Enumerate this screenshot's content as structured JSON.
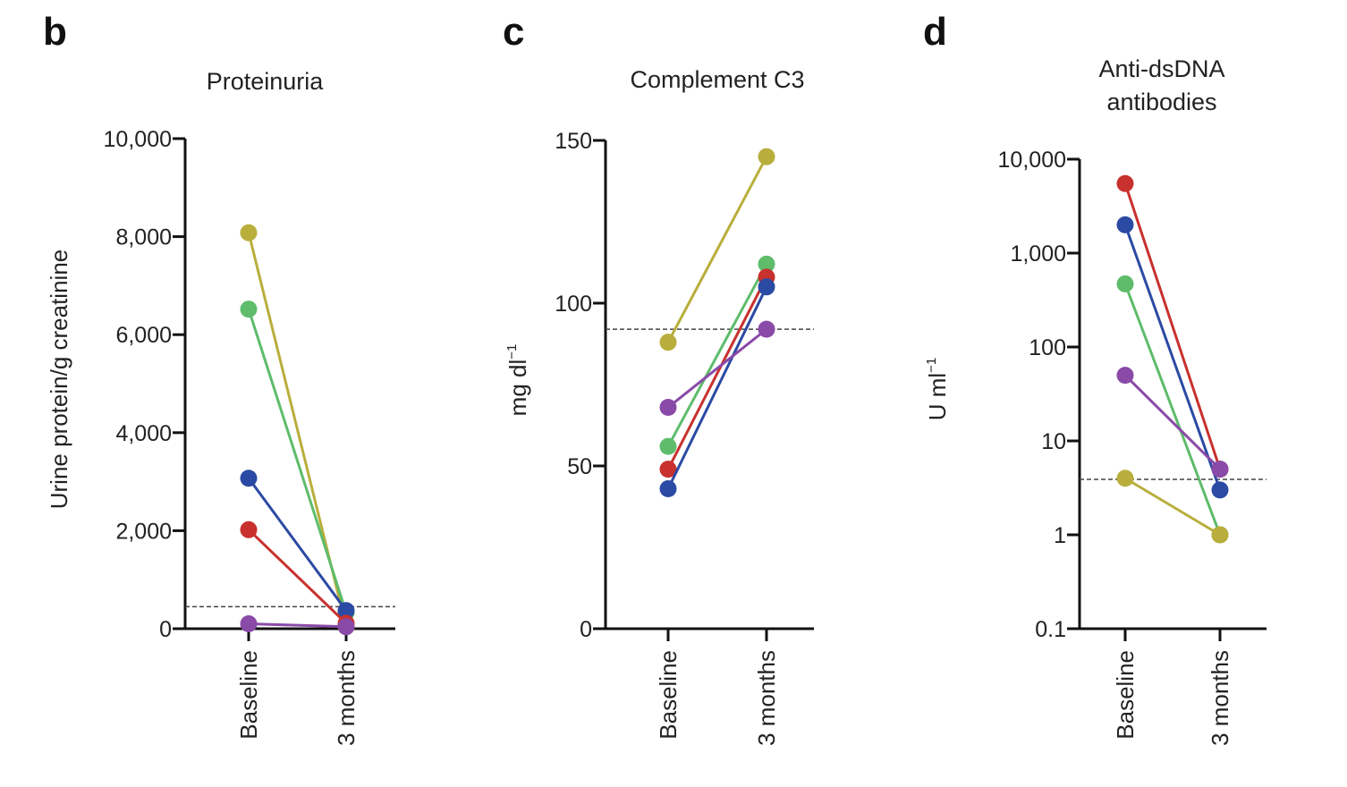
{
  "chart_data": [
    {
      "panel": "b",
      "type": "line",
      "title": "Proteinuria",
      "ylabel": "Urine protein/g creatinine",
      "ylabel_sup": "",
      "categories": [
        "Baseline",
        "3 months"
      ],
      "yscale": "linear",
      "ylim": [
        0,
        10000
      ],
      "yticks": [
        0,
        2000,
        4000,
        6000,
        8000,
        10000
      ],
      "ytick_labels": [
        "0",
        "2,000",
        "4,000",
        "6,000",
        "8,000",
        "10,000"
      ],
      "reference_line": 450,
      "series": [
        {
          "color": "#b9ae3c",
          "values": [
            8080,
            50
          ]
        },
        {
          "color": "#5ebc6b",
          "values": [
            6520,
            330
          ]
        },
        {
          "color": "#2b4aa3",
          "values": [
            3070,
            370
          ]
        },
        {
          "color": "#c8312e",
          "values": [
            2020,
            110
          ]
        },
        {
          "color": "#8a4aa8",
          "values": [
            100,
            40
          ]
        }
      ]
    },
    {
      "panel": "c",
      "type": "line",
      "title": "Complement C3",
      "ylabel": "mg dl",
      "ylabel_sup": "−1",
      "categories": [
        "Baseline",
        "3 months"
      ],
      "yscale": "linear",
      "ylim": [
        0,
        150
      ],
      "yticks": [
        0,
        50,
        100,
        150
      ],
      "ytick_labels": [
        "0",
        "50",
        "100",
        "150"
      ],
      "reference_line": 92,
      "series": [
        {
          "color": "#b9ae3c",
          "values": [
            88,
            145
          ]
        },
        {
          "color": "#5ebc6b",
          "values": [
            56,
            112
          ]
        },
        {
          "color": "#c8312e",
          "values": [
            49,
            108
          ]
        },
        {
          "color": "#2b4aa3",
          "values": [
            43,
            105
          ]
        },
        {
          "color": "#8a4aa8",
          "values": [
            68,
            92
          ]
        }
      ]
    },
    {
      "panel": "d",
      "type": "line",
      "title": "Anti-dsDNA",
      "title_line2": "antibodies",
      "ylabel": "U ml",
      "ylabel_sup": "−1",
      "categories": [
        "Baseline",
        "3 months"
      ],
      "yscale": "log",
      "ylim": [
        0.1,
        10000
      ],
      "yticks": [
        0.1,
        1,
        10,
        100,
        1000,
        10000
      ],
      "ytick_labels": [
        "0.1",
        "1",
        "10",
        "100",
        "1,000",
        "10,000"
      ],
      "reference_line": 3.9,
      "series": [
        {
          "color": "#c8312e",
          "values": [
            5500,
            5
          ]
        },
        {
          "color": "#2b4aa3",
          "values": [
            2000,
            3
          ]
        },
        {
          "color": "#5ebc6b",
          "values": [
            470,
            1
          ]
        },
        {
          "color": "#8a4aa8",
          "values": [
            50,
            5
          ]
        },
        {
          "color": "#b9ae3c",
          "values": [
            4,
            1
          ]
        }
      ]
    }
  ]
}
